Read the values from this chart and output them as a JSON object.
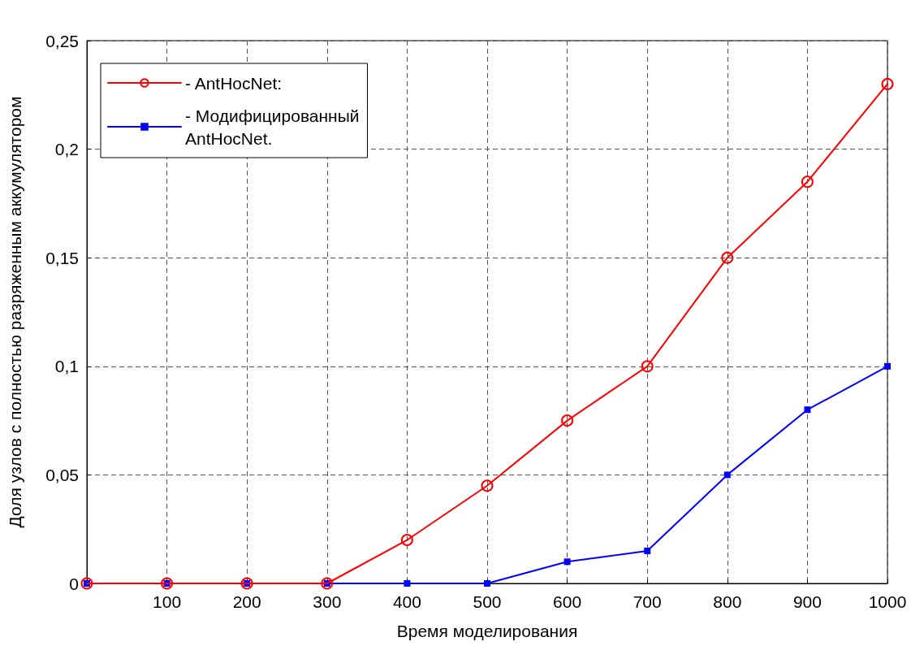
{
  "chart_data": {
    "type": "line",
    "xlabel": "Время моделирования",
    "ylabel": "Доля узлов с полностью разряженным аккумулятором",
    "x": [
      0,
      100,
      200,
      300,
      400,
      500,
      600,
      700,
      800,
      900,
      1000
    ],
    "series": [
      {
        "name": "- AntHocNet:",
        "color": "#ff0000",
        "marker": "circle",
        "values": [
          0,
          0,
          0,
          0,
          0.02,
          0.045,
          0.075,
          0.1,
          0.15,
          0.185,
          0.23
        ]
      },
      {
        "name": "- Модифицированный\nAntHocNet.",
        "color": "#0000ff",
        "marker": "square",
        "values": [
          0,
          0,
          0,
          0,
          0,
          0,
          0.01,
          0.015,
          0.05,
          0.08,
          0.1
        ]
      }
    ],
    "xlim": [
      0,
      1000
    ],
    "xticks": [
      100,
      200,
      300,
      400,
      500,
      600,
      700,
      800,
      900,
      1000
    ],
    "ylim": [
      0,
      0.25
    ],
    "yticks": [
      0,
      {
        "value": 0.05,
        "label": "0,05"
      },
      {
        "value": 0.1,
        "label": "0,1"
      },
      {
        "value": 0.15,
        "label": "0,15"
      },
      {
        "value": 0.2,
        "label": "0,2"
      },
      {
        "value": 0.25,
        "label": "0,25"
      }
    ],
    "grid": true,
    "legend": "top left",
    "line_style": "solid"
  }
}
